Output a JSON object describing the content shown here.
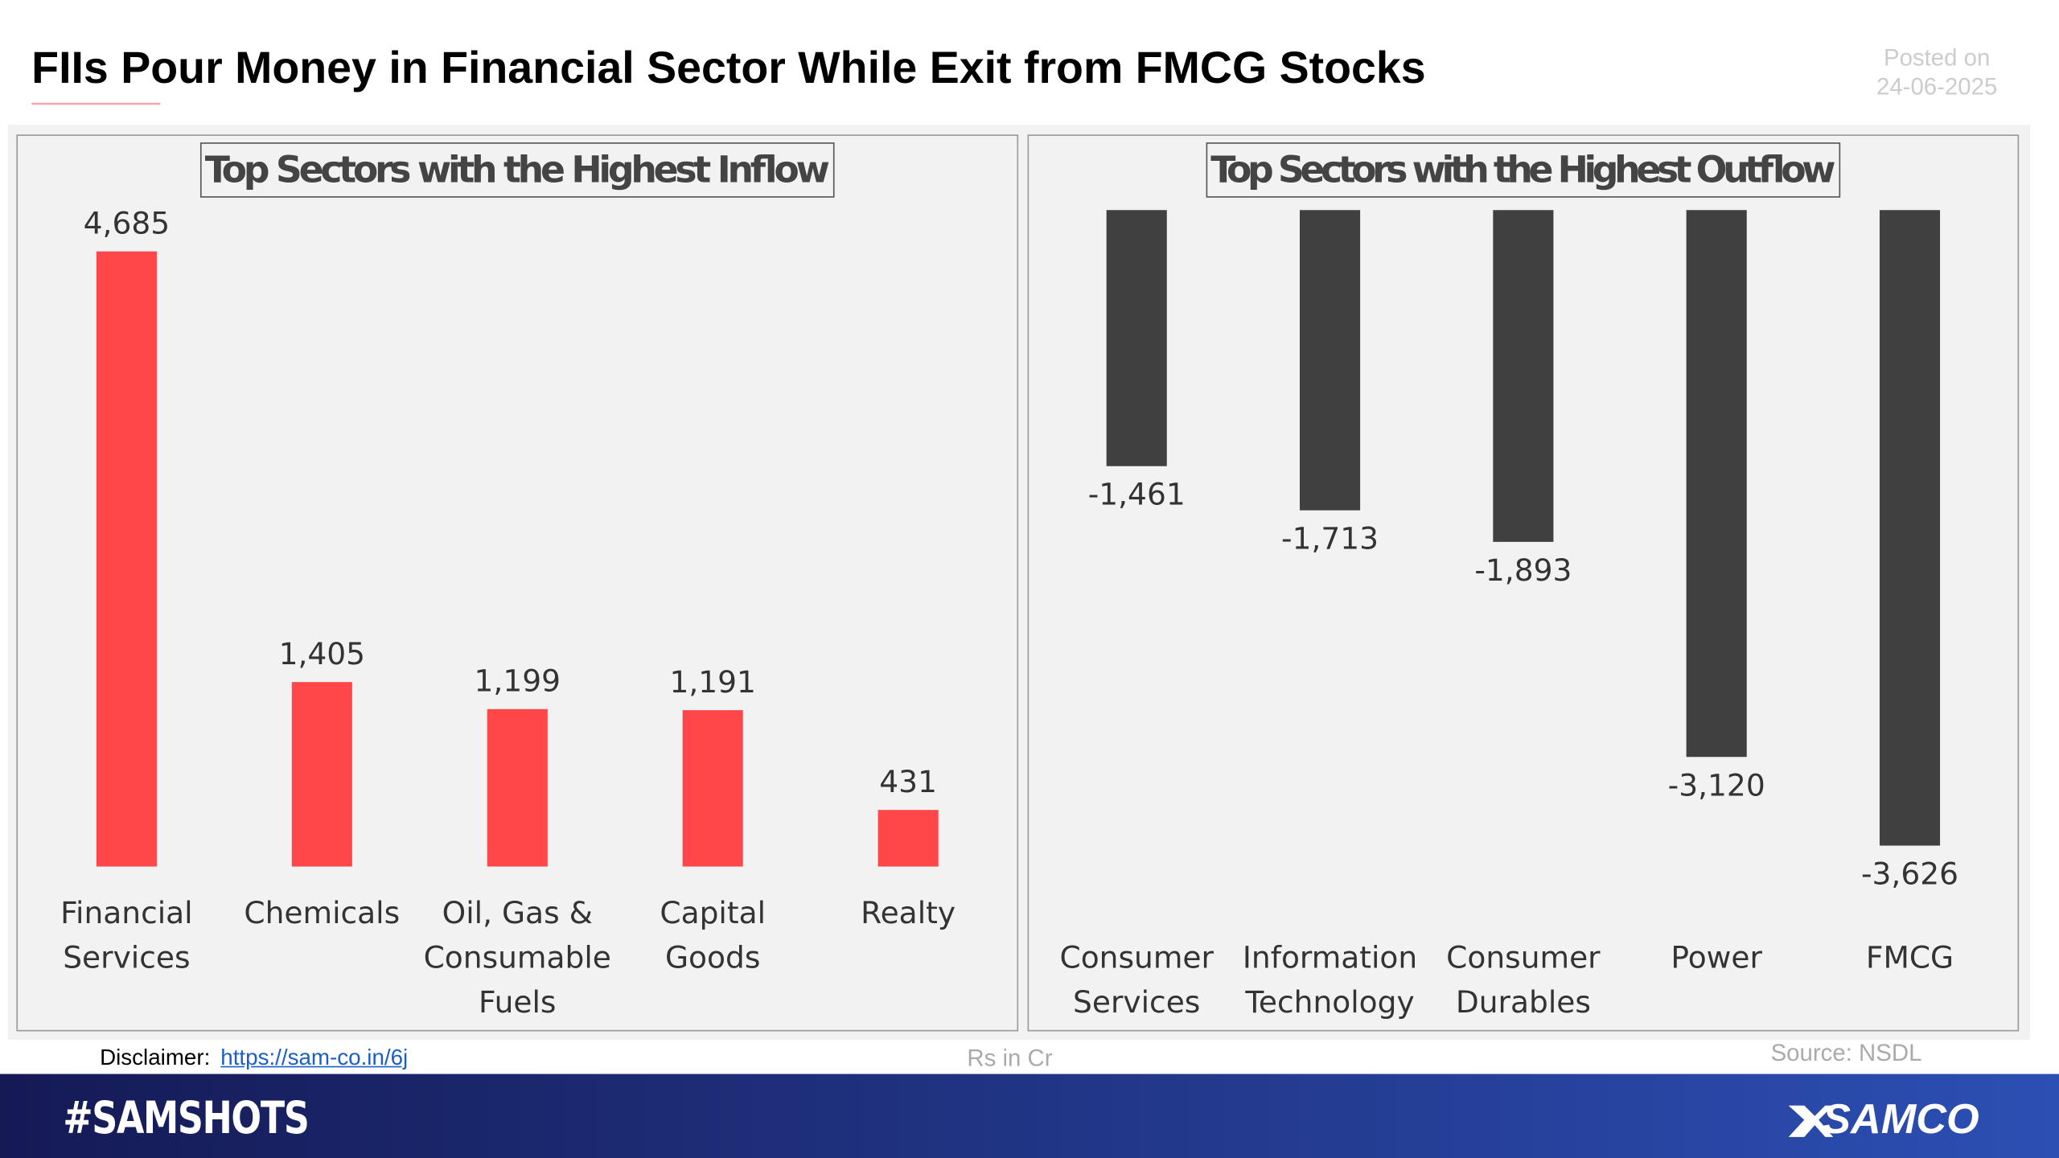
{
  "title": "FIIs Pour Money in Financial Sector While Exit from FMCG Stocks",
  "posted_label": "Posted on",
  "posted_date": "24-06-2025",
  "disclaimer_label": "Disclaimer:",
  "disclaimer_link": "https://sam-co.in/6j",
  "unit_note": "Rs in Cr",
  "source": "Source: NSDL",
  "hashtag": "#SAMSHOTS",
  "brand": "SAMCO",
  "chart_data": [
    {
      "type": "bar",
      "title": "Top Sectors with the Highest Inflow",
      "categories": [
        "Financial Services",
        "Chemicals",
        "Oil, Gas & Consumable Fuels",
        "Capital Goods",
        "Realty"
      ],
      "values": [
        4685,
        1405,
        1199,
        1191,
        431
      ],
      "value_labels": [
        "4,685",
        "1,405",
        "1,199",
        "1,191",
        "431"
      ],
      "color": "#ff474a",
      "ylim": [
        0,
        5000
      ]
    },
    {
      "type": "bar",
      "title": "Top Sectors with the Highest Outflow",
      "categories": [
        "Consumer Services",
        "Information Technology",
        "Consumer Durables",
        "Power",
        "FMCG"
      ],
      "values": [
        -1461,
        -1713,
        -1893,
        -3120,
        -3626
      ],
      "value_labels": [
        "-1,461",
        "-1,713",
        "-1,893",
        "-3,120",
        "-3,626"
      ],
      "color": "#404040",
      "ylim": [
        -4000,
        0
      ]
    }
  ]
}
